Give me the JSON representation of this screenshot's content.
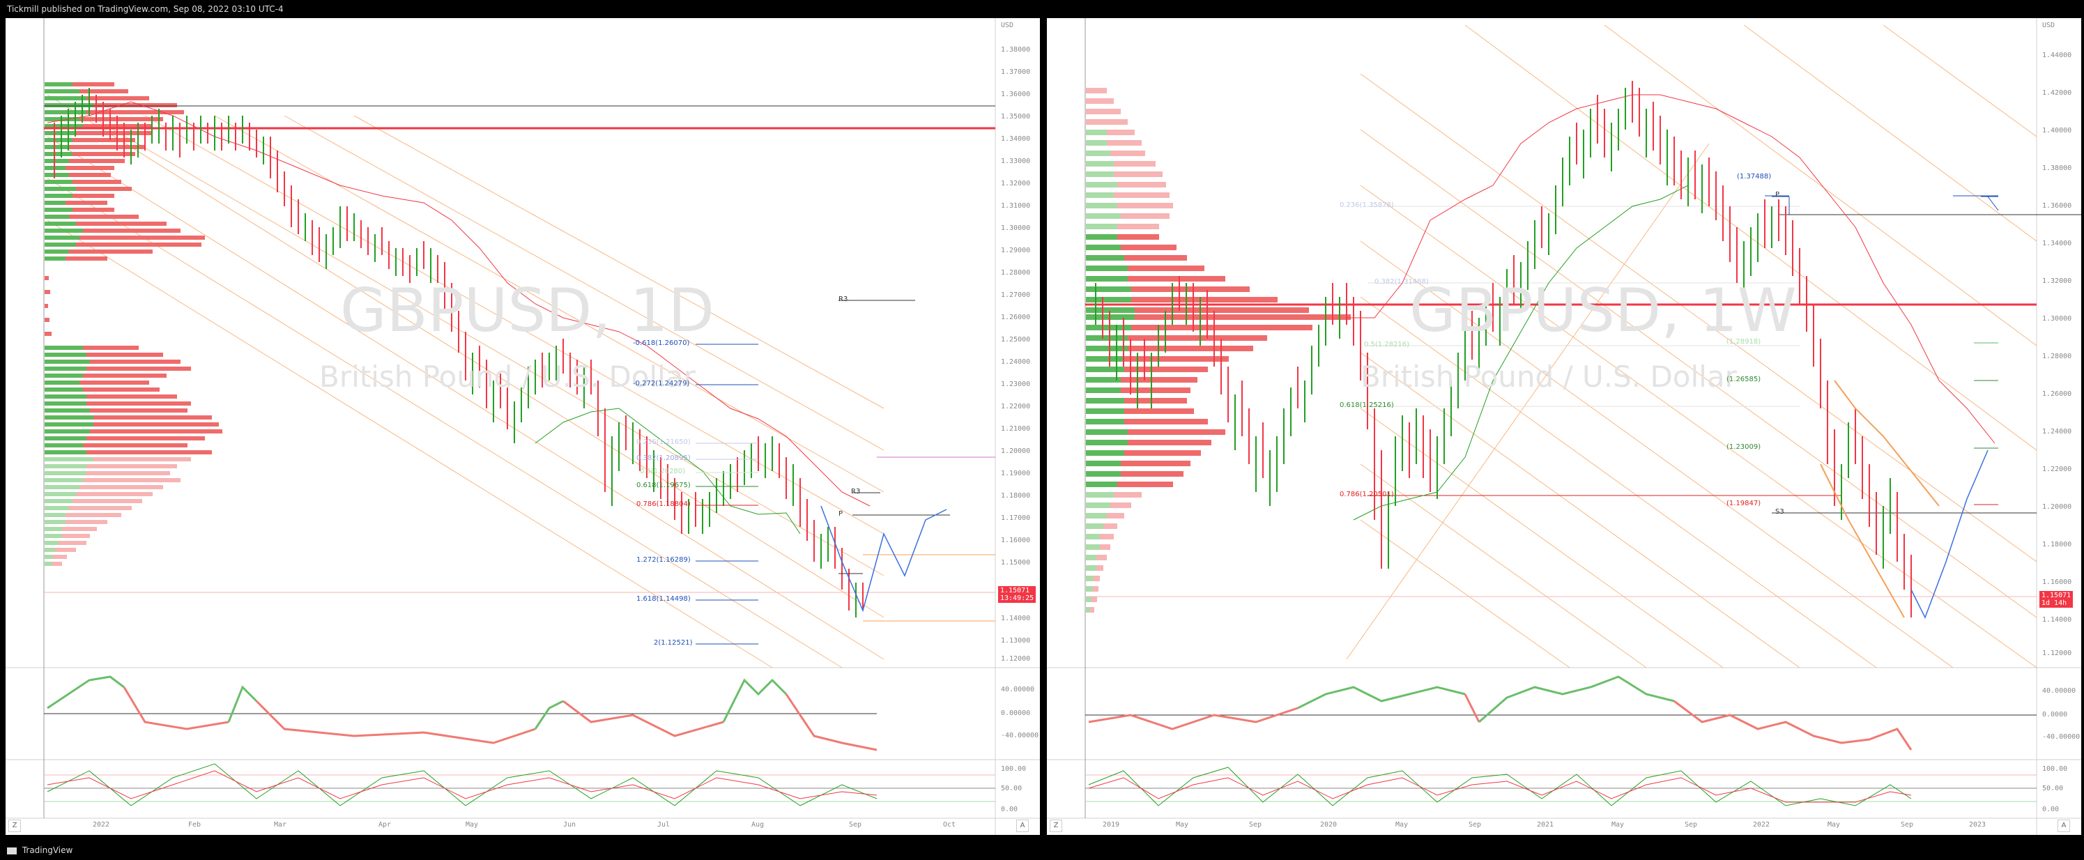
{
  "header": {
    "publish_text": "Tickmill published on TradingView.com, Sep 08, 2022 03:10 UTC-4"
  },
  "footer": {
    "brand": "TradingView"
  },
  "left_chart": {
    "symbol_watermark": "GBPUSD, 1D",
    "name_watermark": "British Pound / U.S. Dollar",
    "currency": "USD",
    "price_ticks": [
      "1.38000",
      "1.37000",
      "1.36000",
      "1.35000",
      "1.34000",
      "1.33000",
      "1.32000",
      "1.31000",
      "1.30000",
      "1.29000",
      "1.28000",
      "1.27000",
      "1.26000",
      "1.25000",
      "1.24000",
      "1.23000",
      "1.22000",
      "1.21000",
      "1.20000",
      "1.19000",
      "1.18000",
      "1.17000",
      "1.16000",
      "1.15000",
      "1.14000",
      "1.13000",
      "1.12000"
    ],
    "time_ticks": [
      "2022",
      "Feb",
      "Mar",
      "Apr",
      "May",
      "Jun",
      "Jul",
      "Aug",
      "Sep",
      "Oct"
    ],
    "last_price": "1.15071",
    "countdown": "13:49:25",
    "fib_labels": [
      "-0.618(1.26070)",
      "-0.272(1.24279)",
      "0.236(1.21650)",
      "0.382(1.20895)",
      "0.5(1.20280)",
      "0.618(1.19675)",
      "0.786(1.18804)",
      "1.272(1.16289)",
      "1.618(1.14498)",
      "2(1.12521)"
    ],
    "pivot_labels": [
      "R3",
      "R3",
      "P"
    ],
    "rsi_ticks": [
      "40.00000",
      "0.00000",
      "-40.00000"
    ],
    "stoch_ticks": [
      "100.00",
      "50.00",
      "0.00"
    ],
    "corner_z": "Z",
    "corner_a": "A"
  },
  "right_chart": {
    "symbol_watermark": "GBPUSD, 1W",
    "name_watermark": "British Pound / U.S. Dollar",
    "currency": "USD",
    "price_ticks": [
      "1.44000",
      "1.42000",
      "1.40000",
      "1.38000",
      "1.36000",
      "1.34000",
      "1.32000",
      "1.30000",
      "1.28000",
      "1.26000",
      "1.24000",
      "1.22000",
      "1.20000",
      "1.18000",
      "1.16000",
      "1.14000",
      "1.12000"
    ],
    "time_ticks": [
      "2019",
      "May",
      "Sep",
      "2020",
      "May",
      "Sep",
      "2021",
      "May",
      "Sep",
      "2022",
      "May",
      "Sep",
      "2023"
    ],
    "last_price": "1.15071",
    "countdown": "1d 14h",
    "fib_labels": [
      "0.236(1.35878)",
      "0.382(1.31488)",
      "0.5(1.28216)",
      "0.618(1.25216)",
      "0.786(1.20501)"
    ],
    "level_labels": [
      "(1.37488)",
      "(1.28918)",
      "(1.26585)",
      "(1.23009)",
      "(1.19847)"
    ],
    "pivot_labels": [
      "P",
      "S3"
    ],
    "rsi_ticks": [
      "40.00000",
      "0.0000",
      "-40.00000"
    ],
    "stoch_ticks": [
      "100.00",
      "50.00",
      "0.00"
    ],
    "corner_z": "Z",
    "corner_a": "A"
  },
  "colors": {
    "bull": "#22a022",
    "bear": "#f23645",
    "fib_blue": "#1e4fb8",
    "fib_green": "#2e8b2e",
    "fib_red": "#e02020",
    "channel": "#f5a05a"
  }
}
